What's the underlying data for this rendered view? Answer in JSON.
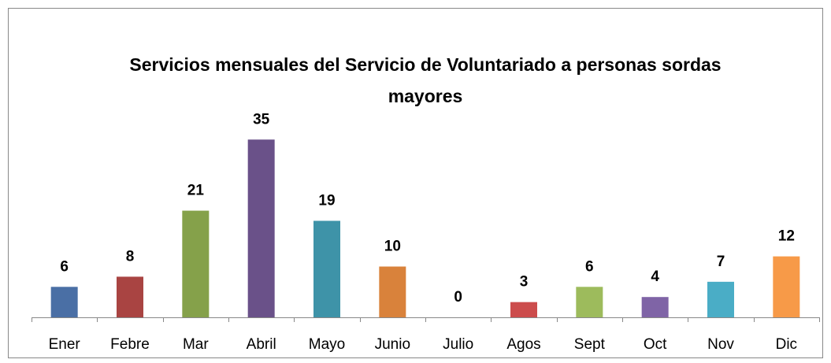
{
  "chart_data": {
    "type": "bar",
    "title": "Servicios mensuales del Servicio de Voluntariado a personas sordas mayores",
    "categories": [
      "Ener",
      "Febre",
      "Mar",
      "Abril",
      "Mayo",
      "Junio",
      "Julio",
      "Agos",
      "Sept",
      "Oct",
      "Nov",
      "Dic"
    ],
    "values": [
      6,
      8,
      21,
      35,
      19,
      10,
      0,
      3,
      6,
      4,
      7,
      12
    ],
    "colors": [
      "#4a6fa5",
      "#a94442",
      "#85a14a",
      "#6a5189",
      "#3e93a8",
      "#d9823b",
      "#3c6eaa",
      "#cc4c4c",
      "#9dbb5c",
      "#7f64a6",
      "#4aadc6",
      "#f79a48"
    ],
    "ylim": [
      0,
      40
    ]
  }
}
